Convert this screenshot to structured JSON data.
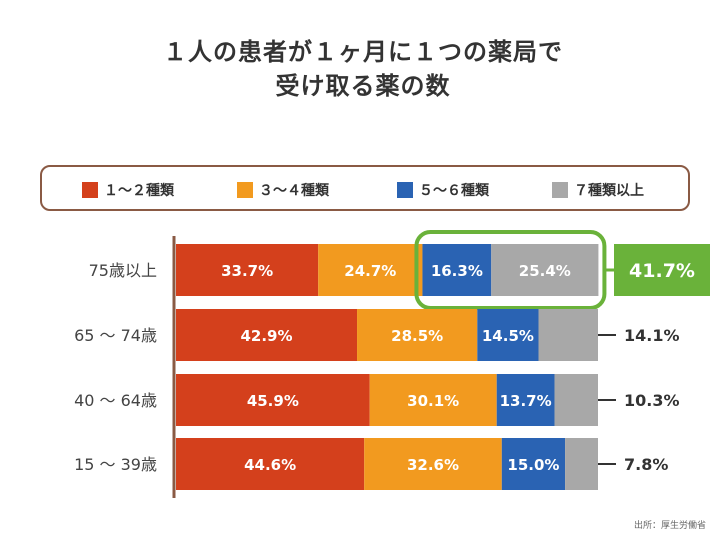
{
  "title_line1": "１人の患者が１ヶ月に１つの薬局で",
  "title_line2": "受け取る薬の数",
  "source": "出所：厚生労働省",
  "chart_data": {
    "type": "bar",
    "orientation": "horizontal",
    "stacked": true,
    "title": "１人の患者が１ヶ月に１つの薬局で受け取る薬の数",
    "categories": [
      "75歳以上",
      "65 〜 74歳",
      "40 〜 64歳",
      "15 〜 39歳"
    ],
    "series": [
      {
        "name": "１〜２種類",
        "color": "#d4401c",
        "values": [
          33.7,
          42.9,
          45.9,
          44.6
        ],
        "labels": [
          "33.7%",
          "42.9%",
          "45.9%",
          "44.6%"
        ]
      },
      {
        "name": "３〜４種類",
        "color": "#f29a1f",
        "values": [
          24.7,
          28.5,
          30.1,
          32.6
        ],
        "labels": [
          "24.7%",
          "28.5%",
          "30.1%",
          "32.6%"
        ]
      },
      {
        "name": "５〜６種類",
        "color": "#2a63b3",
        "values": [
          16.3,
          14.5,
          13.7,
          15.0
        ],
        "labels": [
          "16.3%",
          "14.5%",
          "13.7%",
          "15.0%"
        ]
      },
      {
        "name": "７種類以上",
        "color": "#a8a8a8",
        "values": [
          25.4,
          14.1,
          10.3,
          7.8
        ],
        "labels": [
          "25.4%",
          "",
          "",
          ""
        ]
      }
    ],
    "callouts": [
      "41.7%",
      "14.1%",
      "10.3%",
      "7.8%"
    ],
    "callout_highlight_color": "#6ab23a",
    "highlight_row": 0,
    "highlight_series": [
      2,
      3
    ],
    "xlim": [
      0,
      100
    ],
    "legend_position": "top"
  }
}
